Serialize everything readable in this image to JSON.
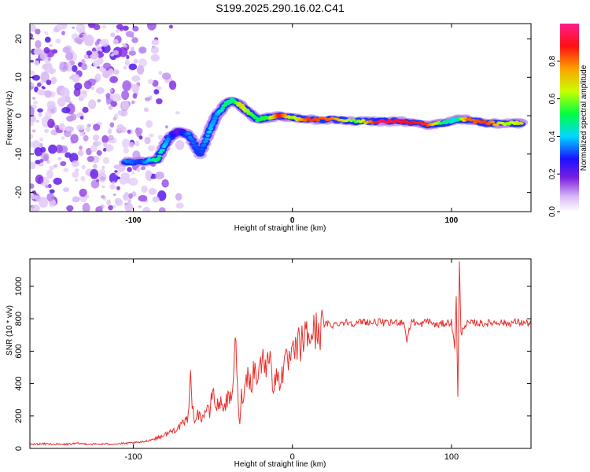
{
  "title": "S199.2025.290.16.02.C41",
  "chart_data": [
    {
      "type": "heatmap",
      "name": "spectrogram",
      "xlabel": "Height of straight line (km)",
      "ylabel": "Frequency (Hz)",
      "xlim": [
        -165,
        150
      ],
      "ylim": [
        -25,
        24
      ],
      "xticks": [
        -100,
        0,
        100
      ],
      "xtick_labels": [
        "-100",
        "0",
        "100"
      ],
      "yticks": [
        -20,
        -10,
        0,
        10,
        20
      ],
      "ytick_labels": [
        "-20",
        "-10",
        "0",
        "10",
        "20"
      ],
      "colorbar": {
        "label": "Normalized spectral amplitude",
        "range": [
          0,
          1
        ],
        "ticks": [
          0.0,
          0.2,
          0.4,
          0.6,
          0.8
        ],
        "tick_labels": [
          "0.0",
          "0.2",
          "0.4",
          "0.6",
          "0.8"
        ]
      },
      "noise_region_x": [
        -165,
        -85
      ],
      "ridge": [
        {
          "x": -105,
          "y": -12,
          "v": 0.35
        },
        {
          "x": -95,
          "y": -12,
          "v": 0.3
        },
        {
          "x": -85,
          "y": -11.5,
          "v": 0.5
        },
        {
          "x": -78,
          "y": -6,
          "v": 0.35
        },
        {
          "x": -72,
          "y": -4,
          "v": 0.2
        },
        {
          "x": -65,
          "y": -5,
          "v": 0.35
        },
        {
          "x": -58,
          "y": -10,
          "v": 0.3
        },
        {
          "x": -52,
          "y": -4,
          "v": 0.4
        },
        {
          "x": -48,
          "y": 0,
          "v": 0.35
        },
        {
          "x": -42,
          "y": 3,
          "v": 0.5
        },
        {
          "x": -38,
          "y": 4,
          "v": 0.45
        },
        {
          "x": -32,
          "y": 2.5,
          "v": 0.7
        },
        {
          "x": -28,
          "y": 1,
          "v": 0.6
        },
        {
          "x": -22,
          "y": -1,
          "v": 0.5
        },
        {
          "x": -15,
          "y": -0.5,
          "v": 0.55
        },
        {
          "x": -8,
          "y": 0,
          "v": 0.9
        },
        {
          "x": 0,
          "y": -0.5,
          "v": 0.6
        },
        {
          "x": 10,
          "y": -1,
          "v": 0.85
        },
        {
          "x": 25,
          "y": -1,
          "v": 0.8
        },
        {
          "x": 40,
          "y": -1.5,
          "v": 0.55
        },
        {
          "x": 55,
          "y": -1.5,
          "v": 0.95
        },
        {
          "x": 70,
          "y": -1.5,
          "v": 0.9
        },
        {
          "x": 85,
          "y": -2.5,
          "v": 0.85
        },
        {
          "x": 95,
          "y": -2,
          "v": 0.5
        },
        {
          "x": 103,
          "y": -1,
          "v": 0.4
        },
        {
          "x": 110,
          "y": -1,
          "v": 0.8
        },
        {
          "x": 122,
          "y": -2,
          "v": 0.85
        },
        {
          "x": 135,
          "y": -2,
          "v": 0.6
        },
        {
          "x": 145,
          "y": -2,
          "v": 0.7
        }
      ]
    },
    {
      "type": "line",
      "name": "snr",
      "xlabel": "Height of straight line (km)",
      "ylabel": "SNR (10 * v/v)",
      "xlim": [
        -165,
        150
      ],
      "ylim": [
        0,
        1170
      ],
      "xticks": [
        -100,
        0,
        100
      ],
      "xtick_labels": [
        "-100",
        "0",
        "100"
      ],
      "yticks": [
        0,
        200,
        400,
        600,
        800,
        1000
      ],
      "ytick_labels": [
        "0",
        "200",
        "400",
        "600",
        "800",
        "1000"
      ],
      "color": "#e8302c",
      "series": [
        {
          "name": "SNR",
          "x": [
            -165,
            -155,
            -145,
            -135,
            -125,
            -115,
            -105,
            -95,
            -90,
            -85,
            -80,
            -75,
            -70,
            -66,
            -64,
            -62,
            -60,
            -58,
            -56,
            -54,
            -52,
            -50,
            -48,
            -46,
            -44,
            -42,
            -40,
            -38,
            -36,
            -34,
            -33,
            -32,
            -30,
            -28,
            -26,
            -24,
            -22,
            -20,
            -18,
            -16,
            -14,
            -12,
            -10,
            -8,
            -6,
            -4,
            -2,
            0,
            2,
            4,
            6,
            8,
            10,
            12,
            14,
            16,
            18,
            20,
            22,
            25,
            30,
            35,
            40,
            45,
            50,
            55,
            60,
            65,
            70,
            72,
            75,
            80,
            85,
            90,
            95,
            100,
            102,
            103,
            104,
            105,
            106,
            108,
            110,
            115,
            120,
            125,
            130,
            135,
            140,
            145,
            150
          ],
          "y": [
            25,
            28,
            24,
            30,
            26,
            27,
            30,
            38,
            50,
            65,
            85,
            110,
            140,
            180,
            430,
            160,
            230,
            190,
            200,
            250,
            210,
            380,
            240,
            290,
            260,
            280,
            310,
            290,
            700,
            240,
            170,
            320,
            360,
            480,
            390,
            500,
            430,
            520,
            560,
            480,
            670,
            330,
            460,
            420,
            480,
            520,
            540,
            560,
            600,
            640,
            650,
            700,
            680,
            720,
            710,
            740,
            730,
            760,
            770,
            760,
            775,
            780,
            770,
            785,
            775,
            780,
            770,
            780,
            780,
            670,
            790,
            760,
            790,
            760,
            770,
            780,
            620,
            950,
            310,
            1150,
            700,
            760,
            770,
            775,
            770,
            775,
            780,
            770,
            780,
            775,
            770
          ]
        }
      ]
    }
  ]
}
